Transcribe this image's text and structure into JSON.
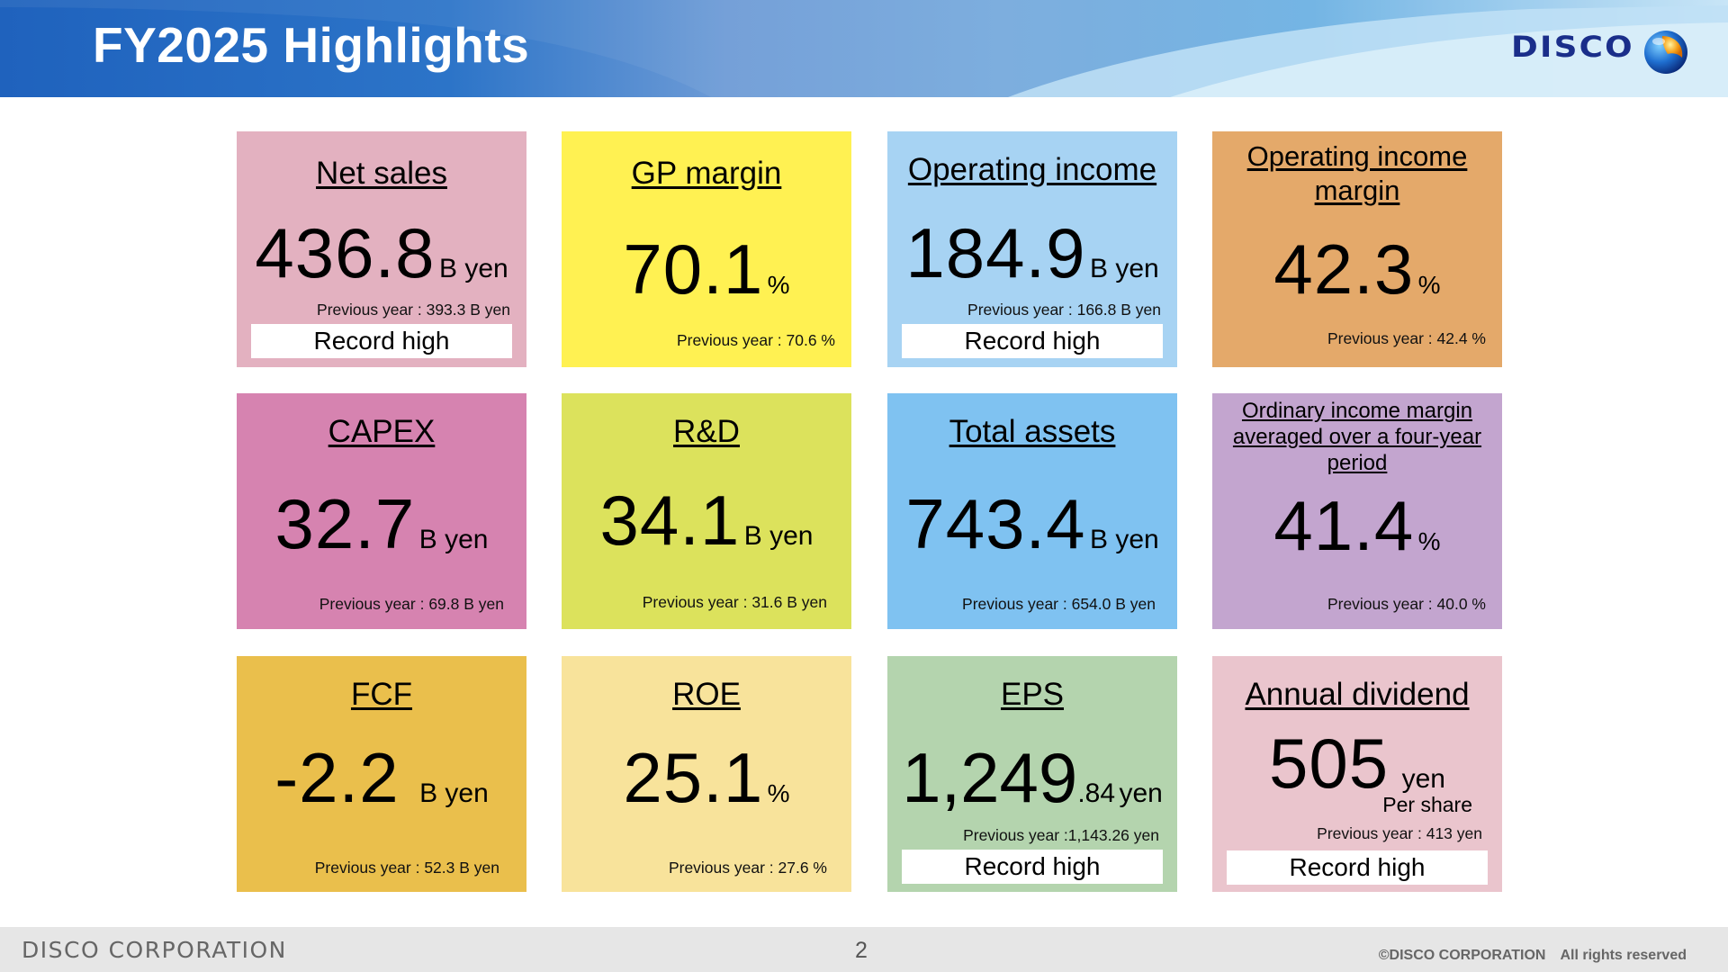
{
  "header": {
    "title": "FY2025 Highlights",
    "logo_text": "DISCO"
  },
  "tiles": [
    {
      "label": "Net sales",
      "value": "436.8",
      "unit": "B yen",
      "prev": "Previous year : 393.3 B yen",
      "badge": "Record high",
      "color": "#e3b1c0"
    },
    {
      "label": "GP margin",
      "value": "70.1",
      "unit": "%",
      "prev": "Previous year : 70.6 %",
      "color": "#fff152"
    },
    {
      "label": "Operating income",
      "value": "184.9",
      "unit": "B yen",
      "prev": "Previous year : 166.8 B yen",
      "badge": "Record high",
      "color": "#a7d3f3"
    },
    {
      "label": "Operating income margin",
      "value": "42.3",
      "unit": "%",
      "prev": "Previous year : 42.4 %",
      "color": "#e4a96a"
    },
    {
      "label": "CAPEX",
      "value": "32.7",
      "unit": "B yen",
      "prev": "Previous year : 69.8 B yen",
      "color": "#d683b0"
    },
    {
      "label": "R&D",
      "value": "34.1",
      "unit": "B yen",
      "prev": "Previous year : 31.6 B yen",
      "color": "#dce25c"
    },
    {
      "label": "Total assets",
      "value": "743.4",
      "unit": "B yen",
      "prev": "Previous year : 654.0 B yen",
      "color": "#7fc2f1"
    },
    {
      "label": "Ordinary income margin averaged over a four-year period",
      "value": "41.4",
      "unit": "%",
      "prev": "Previous year : 40.0 %",
      "color": "#c3a5cf"
    },
    {
      "label": "FCF",
      "value": "-2.2",
      "unit": "B yen",
      "prev": "Previous year : 52.3 B yen",
      "color": "#eabf4c"
    },
    {
      "label": "ROE",
      "value": "25.1",
      "unit": "%",
      "prev": "Previous year : 27.6 %",
      "color": "#f8e39b"
    },
    {
      "label": "EPS",
      "value": "1,249",
      "value_decimal": ".84",
      "unit": "yen",
      "prev": "Previous year :1,143.26 yen",
      "badge": "Record high",
      "color": "#b4d4ae"
    },
    {
      "label": "Annual dividend",
      "value": "505",
      "unit": "yen",
      "sub": "Per share",
      "prev": "Previous year : 413 yen",
      "badge": "Record high",
      "color": "#eac5cd"
    }
  ],
  "footer": {
    "company": "DISCO CORPORATION",
    "page": "2",
    "copyright": "©DISCO CORPORATION　All rights reserved"
  }
}
